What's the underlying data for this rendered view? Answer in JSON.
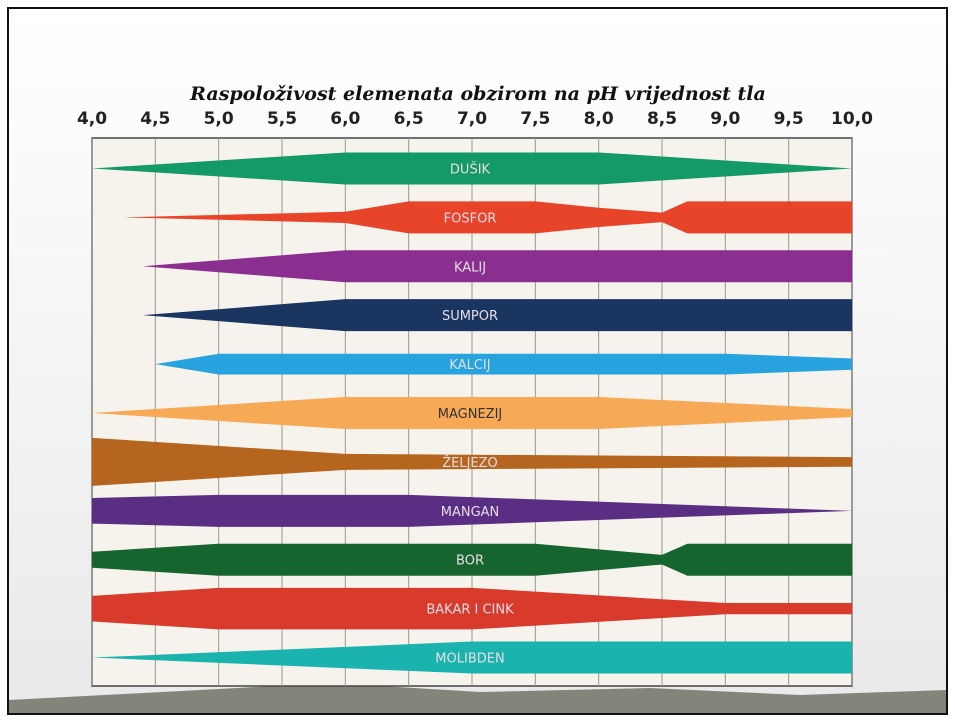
{
  "chart_data": {
    "type": "availability",
    "title": "Raspoloživost elemenata obzirom na pH vrijednost tla",
    "xlim": [
      4.0,
      10.0
    ],
    "xticks": [
      {
        "value": 4.0,
        "label": "4,0"
      },
      {
        "value": 4.5,
        "label": "4,5"
      },
      {
        "value": 5.0,
        "label": "5,0"
      },
      {
        "value": 5.5,
        "label": "5,5"
      },
      {
        "value": 6.0,
        "label": "6,0"
      },
      {
        "value": 6.5,
        "label": "6,5"
      },
      {
        "value": 7.0,
        "label": "7,0"
      },
      {
        "value": 7.5,
        "label": "7,5"
      },
      {
        "value": 8.0,
        "label": "8,0"
      },
      {
        "value": 8.5,
        "label": "8,5"
      },
      {
        "value": 9.0,
        "label": "9,0"
      },
      {
        "value": 9.5,
        "label": "9,5"
      },
      {
        "value": 10.0,
        "label": "10,0"
      }
    ],
    "grid": true,
    "series": [
      {
        "name": "DUŠIK",
        "color": "#139a66",
        "x": [
          4.0,
          6.0,
          8.0,
          10.0
        ],
        "values": [
          0,
          1,
          1,
          0
        ]
      },
      {
        "name": "FOSFOR",
        "color": "#e8442a",
        "x": [
          4.25,
          6.0,
          6.5,
          7.5,
          8.0,
          8.5,
          8.7,
          10.0
        ],
        "values": [
          0,
          0.35,
          1,
          1,
          0.6,
          0.3,
          1,
          1
        ]
      },
      {
        "name": "KALIJ",
        "color": "#8a2f8f",
        "x": [
          4.4,
          6.0,
          10.0
        ],
        "values": [
          0,
          1,
          1
        ]
      },
      {
        "name": "SUMPOR",
        "color": "#1b3561",
        "x": [
          4.4,
          6.0,
          10.0
        ],
        "values": [
          0,
          1,
          1
        ]
      },
      {
        "name": "KALCIJ",
        "color": "#27a3df",
        "x": [
          4.5,
          5.0,
          9.0,
          10.0
        ],
        "values": [
          0,
          0.65,
          0.65,
          0.35
        ]
      },
      {
        "name": "MAGNEZIJ",
        "color": "#f7a955",
        "x": [
          4.0,
          6.0,
          8.0,
          10.0
        ],
        "values": [
          0,
          1,
          1,
          0.25
        ]
      },
      {
        "name": "ŽELJEZO",
        "color": "#b5651d",
        "x": [
          4.0,
          6.0,
          10.0
        ],
        "values": [
          1.5,
          0.5,
          0.3
        ]
      },
      {
        "name": "MANGAN",
        "color": "#5a2e82",
        "x": [
          4.0,
          5.0,
          6.5,
          10.0
        ],
        "values": [
          0.8,
          1,
          1,
          0
        ]
      },
      {
        "name": "BOR",
        "color": "#16652f",
        "x": [
          4.0,
          5.0,
          7.5,
          8.5,
          8.7,
          10.0
        ],
        "values": [
          0.5,
          1,
          1,
          0.3,
          1,
          1
        ]
      },
      {
        "name": "BAKAR I CINK",
        "color": "#d83a2c",
        "x": [
          4.0,
          5.0,
          7.0,
          9.0,
          10.0
        ],
        "values": [
          0.8,
          1.3,
          1.3,
          0.35,
          0.35
        ]
      },
      {
        "name": "MOLIBDEN",
        "color": "#1bb3ad",
        "x": [
          4.0,
          7.0,
          10.0
        ],
        "values": [
          0,
          1,
          1
        ]
      }
    ]
  }
}
